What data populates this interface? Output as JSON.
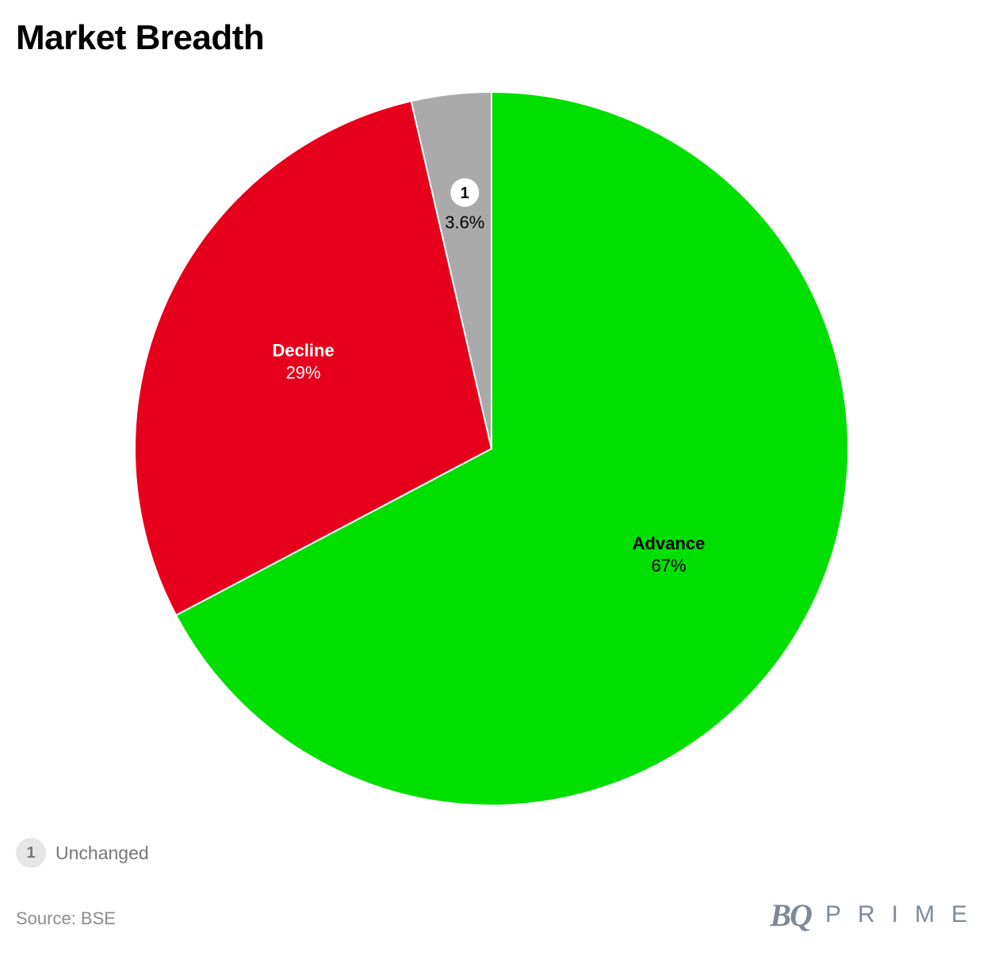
{
  "chart_data": {
    "type": "pie",
    "title": "Market Breadth",
    "slices": [
      {
        "label": "Advance",
        "value": 67,
        "display": "67%",
        "color": "#00df00",
        "label_color": "#000000",
        "show_name": true
      },
      {
        "label": "Decline",
        "value": 29,
        "display": "29%",
        "color": "#e6001c",
        "label_color": "#ffffff",
        "show_name": true
      },
      {
        "label": "Unchanged",
        "value": 3.6,
        "display": "3.6%",
        "color": "#aaaaaa",
        "label_color": "#000000",
        "show_name": false,
        "marker": "1"
      }
    ],
    "start": "12 o'clock",
    "direction": "clockwise"
  },
  "legend": {
    "items": [
      {
        "marker": "1",
        "label": "Unchanged"
      }
    ]
  },
  "footer": {
    "source": "Source: BSE",
    "logo_bq": "BQ",
    "logo_prime": "PRIME"
  }
}
